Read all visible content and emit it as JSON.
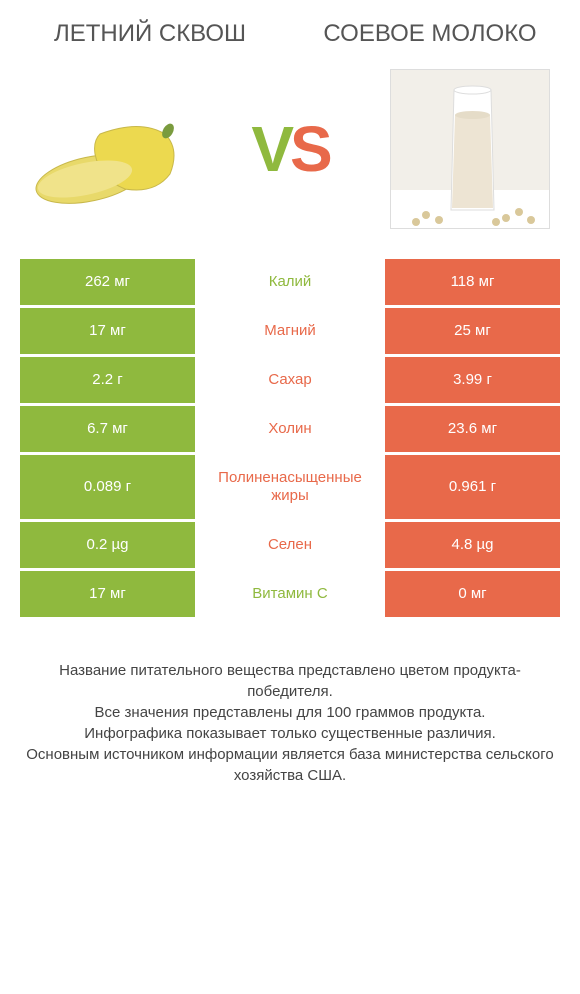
{
  "colors": {
    "left": "#8fb93e",
    "right": "#e8694a",
    "text_mid_green": "#8fb93e",
    "text_mid_orange": "#e8694a"
  },
  "header": {
    "left_title": "ЛЕТНИЙ СКВОШ",
    "right_title": "СОЕВОЕ МОЛОКО"
  },
  "vs": {
    "v": "V",
    "s": "S"
  },
  "rows": [
    {
      "left": "262 мг",
      "mid": "Калий",
      "right": "118 мг",
      "winner": "left"
    },
    {
      "left": "17 мг",
      "mid": "Магний",
      "right": "25 мг",
      "winner": "right"
    },
    {
      "left": "2.2 г",
      "mid": "Сахар",
      "right": "3.99 г",
      "winner": "right"
    },
    {
      "left": "6.7 мг",
      "mid": "Холин",
      "right": "23.6 мг",
      "winner": "right"
    },
    {
      "left": "0.089 г",
      "mid": "Полиненасыщенные жиры",
      "right": "0.961 г",
      "winner": "right"
    },
    {
      "left": "0.2 µg",
      "mid": "Селен",
      "right": "4.8 µg",
      "winner": "right"
    },
    {
      "left": "17 мг",
      "mid": "Витамин C",
      "right": "0 мг",
      "winner": "left"
    }
  ],
  "footer": {
    "line1": "Название питательного вещества представлено цветом продукта-победителя.",
    "line2": "Все значения представлены для 100 граммов продукта.",
    "line3": "Инфографика показывает только существенные различия.",
    "line4": "Основным источником информации является база министерства сельского хозяйства США."
  }
}
